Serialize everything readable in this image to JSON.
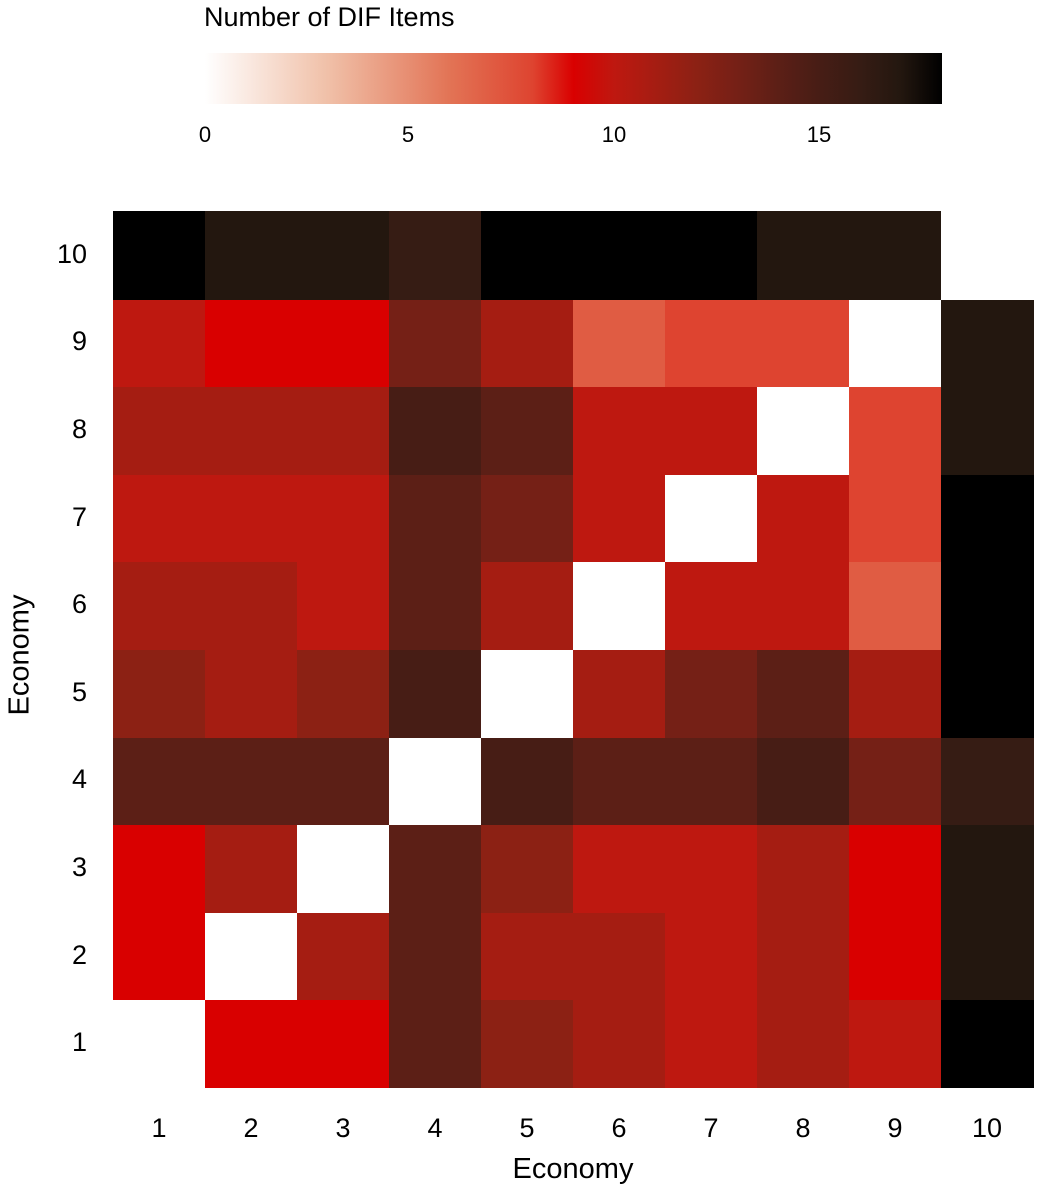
{
  "chart_data": {
    "type": "heatmap",
    "title": "",
    "legend_title": "Number of DIF Items",
    "legend_ticks": [
      "0",
      "5",
      "10",
      "15"
    ],
    "legend_range": [
      0,
      18
    ],
    "xlabel": "Economy",
    "ylabel": "Economy",
    "x": [
      "1",
      "2",
      "3",
      "4",
      "5",
      "6",
      "7",
      "8",
      "9",
      "10"
    ],
    "y": [
      "1",
      "2",
      "3",
      "4",
      "5",
      "6",
      "7",
      "8",
      "9",
      "10"
    ],
    "values": [
      [
        null,
        9,
        9,
        14,
        12,
        11,
        10,
        11,
        10,
        18
      ],
      [
        9,
        null,
        11,
        14,
        11,
        11,
        10,
        11,
        9,
        17
      ],
      [
        9,
        11,
        null,
        14,
        12,
        10,
        10,
        11,
        9,
        17
      ],
      [
        14,
        14,
        14,
        null,
        15,
        14,
        14,
        15,
        13,
        16
      ],
      [
        12,
        11,
        12,
        15,
        null,
        11,
        13,
        14,
        11,
        18
      ],
      [
        11,
        11,
        10,
        14,
        11,
        null,
        10,
        10,
        7,
        18
      ],
      [
        10,
        10,
        10,
        14,
        13,
        10,
        null,
        10,
        8,
        18
      ],
      [
        11,
        11,
        11,
        15,
        14,
        10,
        10,
        null,
        8,
        17
      ],
      [
        10,
        9,
        9,
        13,
        11,
        7,
        8,
        8,
        null,
        17
      ],
      [
        18,
        17,
        17,
        16,
        18,
        18,
        18,
        17,
        17,
        null
      ]
    ],
    "colorscale": [
      [
        0,
        "#ffffff"
      ],
      [
        3,
        "#f0c0a8"
      ],
      [
        6,
        "#e27355"
      ],
      [
        8,
        "#de4430"
      ],
      [
        9,
        "#d90000"
      ],
      [
        10,
        "#be1810"
      ],
      [
        11,
        "#a51d12"
      ],
      [
        12,
        "#8c2114"
      ],
      [
        13,
        "#752016"
      ],
      [
        14,
        "#5c1f16"
      ],
      [
        15,
        "#471d15"
      ],
      [
        16,
        "#361c14"
      ],
      [
        17,
        "#23170f"
      ],
      [
        18,
        "#000000"
      ]
    ],
    "grid": false
  }
}
